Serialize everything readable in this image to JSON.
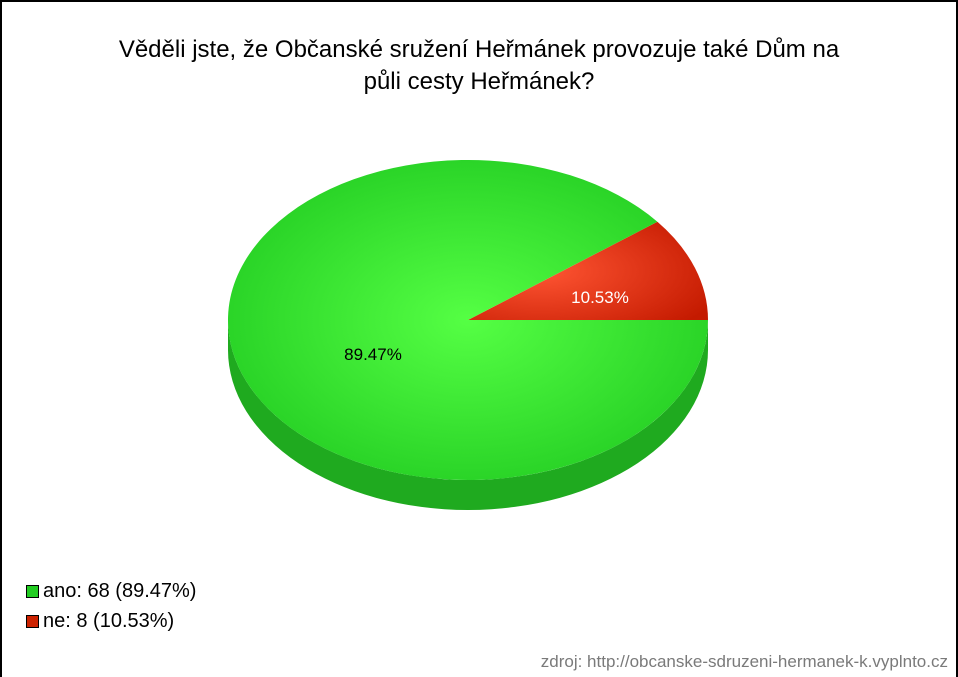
{
  "chart_data": {
    "type": "pie",
    "title": "Věděli jste, že Občanské sružení Heřmánek provozuje také Dům na\npůli cesty Heřmánek?",
    "categories": [
      "ano",
      "ne"
    ],
    "values": [
      68,
      8
    ],
    "percent_labels": [
      "89.47%",
      "10.53%"
    ],
    "legend": [
      "ano: 68 (89.47%)",
      "ne: 8 (10.53%)"
    ],
    "colors": [
      "#2fd42f",
      "#cc2200"
    ],
    "legend_placement": "bottom-left"
  },
  "source": "zdroj: http://obcanske-sdruzeni-hermanek-k.vyplnto.cz"
}
